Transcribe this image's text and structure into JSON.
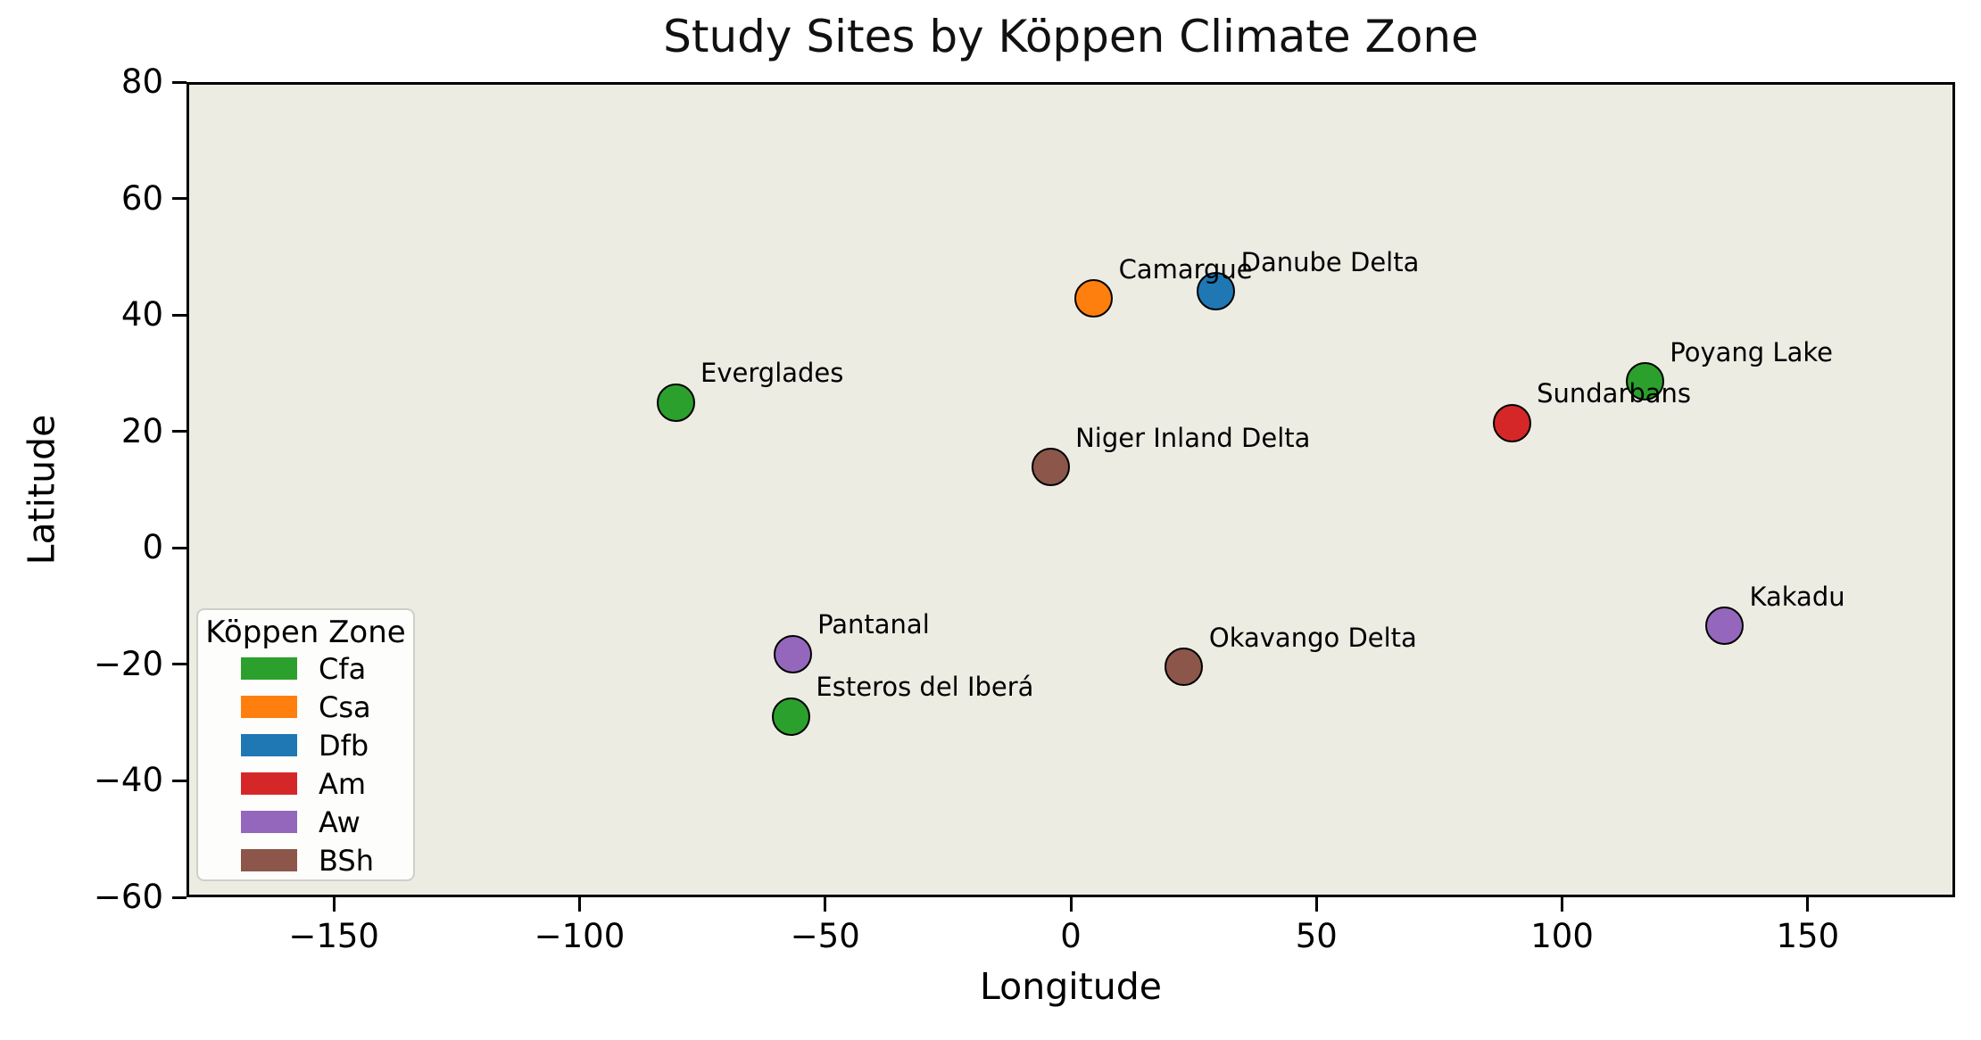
{
  "title": "Study Sites by Köppen Climate Zone",
  "xlabel": "Longitude",
  "ylabel": "Latitude",
  "legend": {
    "title": "Köppen Zone",
    "entries": [
      {
        "label": "Cfa",
        "color": "#2ca02c"
      },
      {
        "label": "Csa",
        "color": "#ff7f0e"
      },
      {
        "label": "Dfb",
        "color": "#1f77b4"
      },
      {
        "label": "Am",
        "color": "#d62728"
      },
      {
        "label": "Aw",
        "color": "#9467bd"
      },
      {
        "label": "BSh",
        "color": "#8c564b"
      }
    ]
  },
  "chart_data": {
    "type": "scatter",
    "title": "Study Sites by Köppen Climate Zone",
    "xlabel": "Longitude",
    "ylabel": "Latitude",
    "xlim": [
      -180,
      180
    ],
    "ylim": [
      -60,
      80
    ],
    "xticks": [
      -150,
      -100,
      -50,
      0,
      50,
      100,
      150
    ],
    "yticks": [
      80,
      60,
      40,
      20,
      0,
      -20,
      -40,
      -60
    ],
    "grid": false,
    "legend_position": "lower left",
    "plot_background": "#ecece3",
    "marker_edge_color": "#000000",
    "zone_colors": {
      "Cfa": "#2ca02c",
      "Csa": "#ff7f0e",
      "Dfb": "#1f77b4",
      "Am": "#d62728",
      "Aw": "#9467bd",
      "BSh": "#8c564b"
    },
    "points": [
      {
        "name": "Everglades",
        "zone": "Cfa",
        "lon": -81.0,
        "lat": 25.4
      },
      {
        "name": "Camargue",
        "zone": "Csa",
        "lon": 4.1,
        "lat": 43.3
      },
      {
        "name": "Danube Delta",
        "zone": "Dfb",
        "lon": 29.0,
        "lat": 44.5
      },
      {
        "name": "Poyang Lake",
        "zone": "Cfa",
        "lon": 116.3,
        "lat": 29.0
      },
      {
        "name": "Sundarbans",
        "zone": "Am",
        "lon": 89.2,
        "lat": 21.9
      },
      {
        "name": "Niger Inland Delta",
        "zone": "BSh",
        "lon": -4.7,
        "lat": 14.3
      },
      {
        "name": "Pantanal",
        "zone": "Aw",
        "lon": -57.2,
        "lat": -17.8
      },
      {
        "name": "Esteros del Iberá",
        "zone": "Cfa",
        "lon": -57.5,
        "lat": -28.5
      },
      {
        "name": "Okavango Delta",
        "zone": "BSh",
        "lon": 22.5,
        "lat": -20.0
      },
      {
        "name": "Kakadu",
        "zone": "Aw",
        "lon": 132.5,
        "lat": -12.9
      }
    ]
  }
}
